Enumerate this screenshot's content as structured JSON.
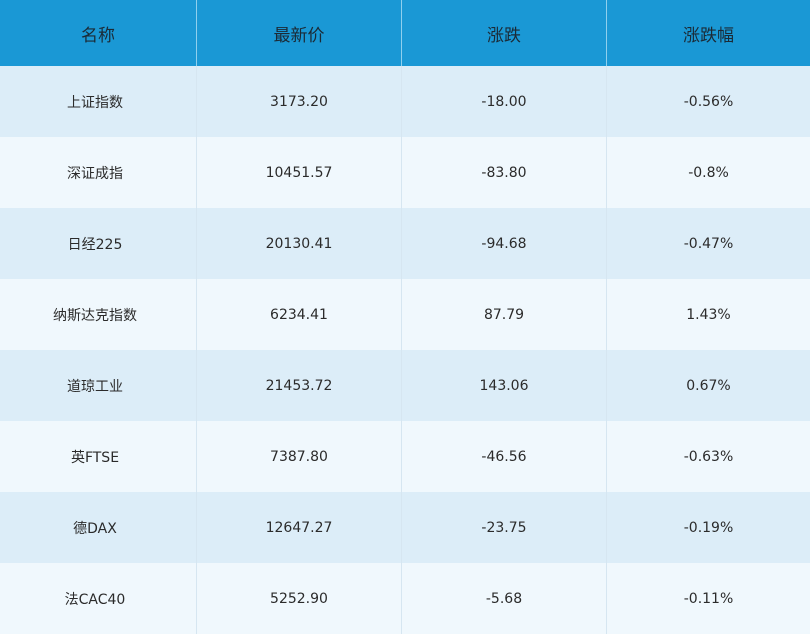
{
  "table": {
    "headers": {
      "name": "名称",
      "price": "最新价",
      "change": "涨跌",
      "change_pct": "涨跌幅"
    },
    "rows": [
      {
        "name": "上证指数",
        "price": "3173.20",
        "change": "-18.00",
        "change_pct": "-0.56%"
      },
      {
        "name": "深证成指",
        "price": "10451.57",
        "change": "-83.80",
        "change_pct": "-0.8%"
      },
      {
        "name": "日经225",
        "price": "20130.41",
        "change": "-94.68",
        "change_pct": "-0.47%"
      },
      {
        "name": "纳斯达克指数",
        "price": "6234.41",
        "change": "87.79",
        "change_pct": "1.43%"
      },
      {
        "name": "道琼工业",
        "price": "21453.72",
        "change": "143.06",
        "change_pct": "0.67%"
      },
      {
        "name": "英FTSE",
        "price": "7387.80",
        "change": "-46.56",
        "change_pct": "-0.63%"
      },
      {
        "name": "德DAX",
        "price": "12647.27",
        "change": "-23.75",
        "change_pct": "-0.19%"
      },
      {
        "name": "法CAC40",
        "price": "5252.90",
        "change": "-5.68",
        "change_pct": "-0.11%"
      }
    ]
  },
  "colors": {
    "header_bg": "#1a98d5",
    "row_odd_bg": "#dcedf8",
    "row_even_bg": "#f0f8fd"
  }
}
